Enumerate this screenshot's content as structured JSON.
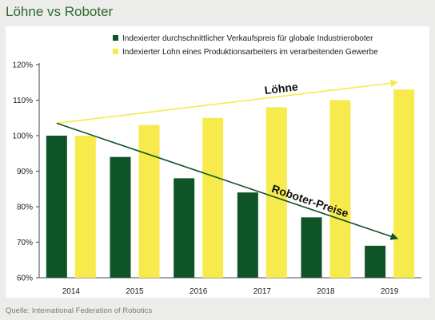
{
  "title": "Löhne vs Roboter",
  "source": "Quelle: International Federation of Robotics",
  "chart_data": {
    "type": "bar",
    "categories": [
      "2014",
      "2015",
      "2016",
      "2017",
      "2018",
      "2019"
    ],
    "series": [
      {
        "name": "Indexierter durchschnittlicher Verkaufspreis für globale Industrieroboter",
        "values": [
          100,
          94,
          88,
          84,
          77,
          69
        ],
        "color": "#0e5426"
      },
      {
        "name": "Indexierter Lohn eines Produktionsarbeiters im verarbeitenden Gewerbe",
        "values": [
          100,
          103,
          105,
          108,
          110,
          113
        ],
        "color": "#f6ea4c"
      }
    ],
    "ylim": [
      60,
      120
    ],
    "yticks": [
      60,
      70,
      80,
      90,
      100,
      110,
      120
    ],
    "ytick_labels": [
      "60%",
      "70%",
      "80%",
      "90%",
      "100%",
      "110%",
      "120%"
    ],
    "grid": false,
    "legend_position": "top",
    "annotations": [
      {
        "text": "Löhne",
        "color": "#f6ea4c",
        "from": {
          "x": "2014",
          "y": 103.5
        },
        "to": {
          "x": "2019",
          "y": 115
        }
      },
      {
        "text": "Roboter-Preise",
        "color": "#0e5426",
        "from": {
          "x": "2014",
          "y": 103.5
        },
        "to": {
          "x": "2019",
          "y": 71
        }
      }
    ]
  }
}
